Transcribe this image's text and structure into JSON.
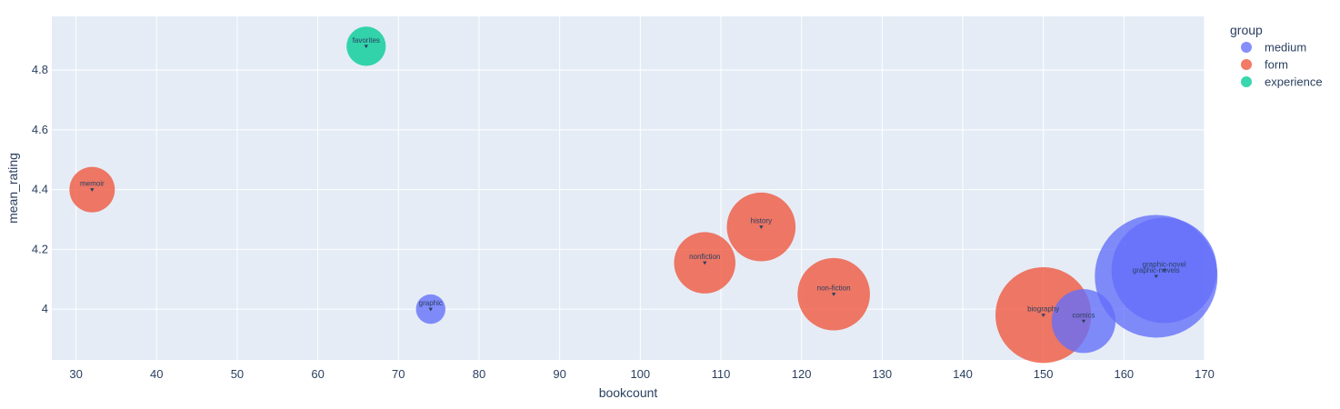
{
  "chart_data": {
    "type": "scatter",
    "xlabel": "bookcount",
    "ylabel": "mean_rating",
    "xlim": [
      27,
      170
    ],
    "ylim": [
      3.83,
      4.98
    ],
    "x_ticks": [
      30,
      40,
      50,
      60,
      70,
      80,
      90,
      100,
      110,
      120,
      130,
      140,
      150,
      160,
      170
    ],
    "y_ticks": [
      4,
      4.2,
      4.4,
      4.6,
      4.8
    ],
    "y_tick_labels": [
      "4",
      "4.2",
      "4.4",
      "4.6",
      "4.8"
    ],
    "grid": true,
    "legend_title": "group",
    "legend_position": "top-right",
    "series": [
      {
        "name": "medium",
        "color": "#636efa",
        "points": [
          {
            "label": "graphic",
            "x": 74,
            "y": 4.0,
            "size": 1.2
          },
          {
            "label": "comics",
            "x": 155,
            "y": 3.96,
            "size": 2.6
          },
          {
            "label": "graphic-novels",
            "x": 164,
            "y": 4.11,
            "size": 5.0
          },
          {
            "label": "graphic-novel",
            "x": 165,
            "y": 4.13,
            "size": 4.3
          }
        ]
      },
      {
        "name": "form",
        "color": "#ef553b",
        "points": [
          {
            "label": "memoir",
            "x": 32,
            "y": 4.4,
            "size": 1.85
          },
          {
            "label": "nonfiction",
            "x": 108,
            "y": 4.155,
            "size": 2.5
          },
          {
            "label": "history",
            "x": 115,
            "y": 4.275,
            "size": 2.8
          },
          {
            "label": "non-fiction",
            "x": 124,
            "y": 4.05,
            "size": 2.95
          },
          {
            "label": "biography",
            "x": 150,
            "y": 3.98,
            "size": 3.9
          }
        ]
      },
      {
        "name": "experience",
        "color": "#00cc96",
        "points": [
          {
            "label": "favorites",
            "x": 66,
            "y": 4.88,
            "size": 1.6
          }
        ]
      }
    ]
  }
}
